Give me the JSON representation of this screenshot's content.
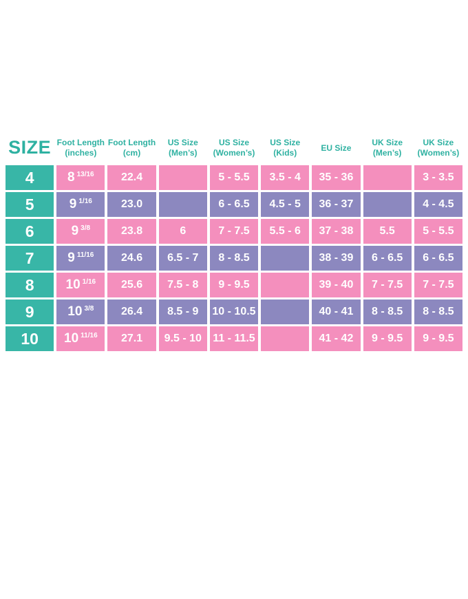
{
  "colors": {
    "teal": "#38b6a7",
    "pink": "#f48fbd",
    "purple": "#8c88bf",
    "header_text": "#2eb1a1",
    "cell_text": "#ffffff",
    "background": "#ffffff"
  },
  "chart_data": {
    "type": "table",
    "title": "Shoe size conversion chart",
    "columns": [
      "SIZE",
      "Foot Length (inches)",
      "Foot Length (cm)",
      "US Size (Men's)",
      "US Size (Women's)",
      "US Size (Kids)",
      "EU Size",
      "UK Size (Men's)",
      "UK Size (Women's)"
    ],
    "rows": [
      [
        "4",
        "8 13/16",
        "22.4",
        "",
        "5 - 5.5",
        "3.5 - 4",
        "35 - 36",
        "",
        "3 - 3.5"
      ],
      [
        "5",
        "9 1/16",
        "23.0",
        "",
        "6 - 6.5",
        "4.5 - 5",
        "36 - 37",
        "",
        "4 - 4.5"
      ],
      [
        "6",
        "9 3/8",
        "23.8",
        "6",
        "7 - 7.5",
        "5.5 - 6",
        "37 - 38",
        "5.5",
        "5 - 5.5"
      ],
      [
        "7",
        "9 11/16",
        "24.6",
        "6.5 - 7",
        "8 - 8.5",
        "",
        "38 - 39",
        "6 - 6.5",
        "6 - 6.5"
      ],
      [
        "8",
        "10 1/16",
        "25.6",
        "7.5 - 8",
        "9 - 9.5",
        "",
        "39 - 40",
        "7 - 7.5",
        "7 - 7.5"
      ],
      [
        "9",
        "10 3/8",
        "26.4",
        "8.5 - 9",
        "10 - 10.5",
        "",
        "40 - 41",
        "8 - 8.5",
        "8 - 8.5"
      ],
      [
        "10",
        "10 11/16",
        "27.1",
        "9.5 - 10",
        "11 - 11.5",
        "",
        "41 - 42",
        "9 - 9.5",
        "9 - 9.5"
      ]
    ]
  },
  "table": {
    "headers": [
      {
        "title": "SIZE",
        "sub": ""
      },
      {
        "title": "Foot Length",
        "sub": "(inches)"
      },
      {
        "title": "Foot Length",
        "sub": "(cm)"
      },
      {
        "title": "US Size",
        "sub": "(Men’s)"
      },
      {
        "title": "US Size",
        "sub": "(Women’s)"
      },
      {
        "title": "US Size",
        "sub": "(Kids)"
      },
      {
        "title": "EU Size",
        "sub": ""
      },
      {
        "title": "UK Size",
        "sub": "(Men’s)"
      },
      {
        "title": "UK Size",
        "sub": "(Women’s)"
      }
    ],
    "rows": [
      {
        "size": "4",
        "inches_whole": "8",
        "inches_frac": "13/16",
        "cm": "22.4",
        "us_mens": "",
        "us_womens": "5 - 5.5",
        "us_kids": "3.5 - 4",
        "eu": "35 - 36",
        "uk_mens": "",
        "uk_womens": "3 - 3.5"
      },
      {
        "size": "5",
        "inches_whole": "9",
        "inches_frac": "1/16",
        "cm": "23.0",
        "us_mens": "",
        "us_womens": "6 - 6.5",
        "us_kids": "4.5 - 5",
        "eu": "36 - 37",
        "uk_mens": "",
        "uk_womens": "4 - 4.5"
      },
      {
        "size": "6",
        "inches_whole": "9",
        "inches_frac": "3/8",
        "cm": "23.8",
        "us_mens": "6",
        "us_womens": "7 - 7.5",
        "us_kids": "5.5 - 6",
        "eu": "37 - 38",
        "uk_mens": "5.5",
        "uk_womens": "5 - 5.5"
      },
      {
        "size": "7",
        "inches_whole": "9",
        "inches_frac": "11/16",
        "cm": "24.6",
        "us_mens": "6.5 - 7",
        "us_womens": "8 - 8.5",
        "us_kids": "",
        "eu": "38 - 39",
        "uk_mens": "6 - 6.5",
        "uk_womens": "6 - 6.5"
      },
      {
        "size": "8",
        "inches_whole": "10",
        "inches_frac": "1/16",
        "cm": "25.6",
        "us_mens": "7.5 - 8",
        "us_womens": "9 - 9.5",
        "us_kids": "",
        "eu": "39 - 40",
        "uk_mens": "7 - 7.5",
        "uk_womens": "7 - 7.5"
      },
      {
        "size": "9",
        "inches_whole": "10",
        "inches_frac": "3/8",
        "cm": "26.4",
        "us_mens": "8.5 - 9",
        "us_womens": "10 - 10.5",
        "us_kids": "",
        "eu": "40 - 41",
        "uk_mens": "8 - 8.5",
        "uk_womens": "8 - 8.5"
      },
      {
        "size": "10",
        "inches_whole": "10",
        "inches_frac": "11/16",
        "cm": "27.1",
        "us_mens": "9.5 - 10",
        "us_womens": "11 - 11.5",
        "us_kids": "",
        "eu": "41 - 42",
        "uk_mens": "9 - 9.5",
        "uk_womens": "9 - 9.5"
      }
    ]
  }
}
